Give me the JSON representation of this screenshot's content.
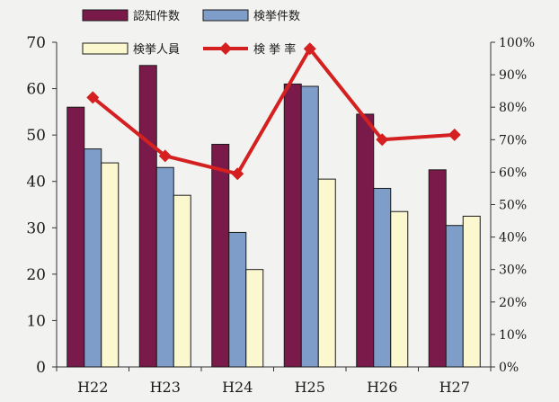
{
  "chart_data": {
    "type": "bar",
    "categories": [
      "H22",
      "H23",
      "H24",
      "H25",
      "H26",
      "H27"
    ],
    "series": [
      {
        "name": "認知件数",
        "values": [
          56,
          65,
          48,
          61,
          54.5,
          42.5
        ],
        "color": "#7a1a4a"
      },
      {
        "name": "検挙件数",
        "values": [
          47,
          43,
          29,
          60.5,
          38.5,
          30.5
        ],
        "color": "#7f9dc9"
      },
      {
        "name": "検挙人員",
        "values": [
          44,
          37,
          21,
          40.5,
          33.5,
          32.5
        ],
        "color": "#fbf8cf"
      }
    ],
    "line_series": {
      "name": "検 挙 率",
      "values": [
        83,
        65,
        59.5,
        98,
        70,
        71.5
      ],
      "color": "#d42020",
      "axis": "right"
    },
    "ylim": [
      0,
      70
    ],
    "y_ticks": [
      "0",
      "10",
      "20",
      "30",
      "40",
      "50",
      "60",
      "70"
    ],
    "y2lim": [
      0,
      100
    ],
    "y2_ticks": [
      "0%",
      "10%",
      "20%",
      "30%",
      "40%",
      "50%",
      "60%",
      "70%",
      "80%",
      "90%",
      "100%"
    ],
    "legend_placement": "top",
    "grid": false
  }
}
